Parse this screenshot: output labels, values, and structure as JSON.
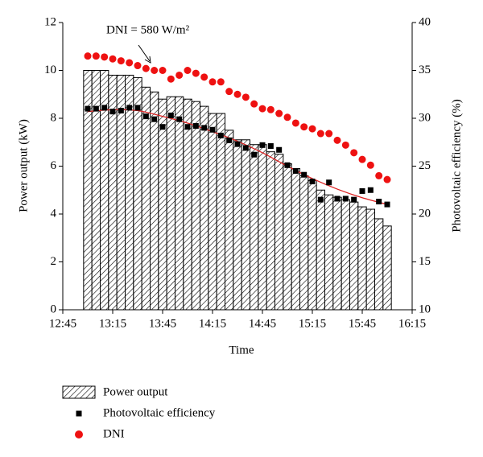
{
  "chart_data": {
    "type": "bar-scatter",
    "xlabel": "Time",
    "ylabel": "Power output (kW)",
    "y2label": "Photovoltaic efficiency (%)",
    "annotation": "DNI = 580 W/m²",
    "xlim": [
      765,
      975
    ],
    "xticks": [
      {
        "value": 765,
        "label": "12:45"
      },
      {
        "value": 795,
        "label": "13:15"
      },
      {
        "value": 825,
        "label": "13:45"
      },
      {
        "value": 855,
        "label": "14:15"
      },
      {
        "value": 885,
        "label": "14:45"
      },
      {
        "value": 915,
        "label": "15:15"
      },
      {
        "value": 945,
        "label": "15:45"
      },
      {
        "value": 975,
        "label": "16:15"
      }
    ],
    "ylim": [
      0,
      12
    ],
    "yticks": [
      0,
      2,
      4,
      6,
      8,
      10,
      12
    ],
    "y2lim": [
      10,
      40
    ],
    "y2ticks": [
      10,
      15,
      20,
      25,
      30,
      35,
      40
    ],
    "x": [
      780,
      785,
      790,
      795,
      800,
      805,
      810,
      815,
      820,
      825,
      830,
      835,
      840,
      845,
      850,
      855,
      860,
      865,
      870,
      875,
      880,
      885,
      890,
      895,
      900,
      905,
      910,
      915,
      920,
      925,
      930,
      935,
      940,
      945,
      950,
      955,
      960
    ],
    "series": [
      {
        "name": "Power output",
        "color": "#000000",
        "values": [
          10,
          10,
          10,
          9.8,
          9.8,
          9.8,
          9.7,
          9.3,
          9.1,
          8.8,
          8.9,
          8.9,
          8.8,
          8.7,
          8.5,
          8.2,
          8.2,
          7.5,
          7.1,
          7.1,
          6.9,
          6.9,
          6.6,
          6.5,
          6.1,
          5.9,
          5.6,
          5.4,
          5.0,
          4.8,
          4.7,
          4.6,
          4.5,
          4.3,
          4.2,
          3.8,
          3.5
        ]
      },
      {
        "name": "Photovoltaic efficiency",
        "color": "#000000",
        "axis": "y2",
        "values": [
          31,
          31,
          31.1,
          30.7,
          30.8,
          31.1,
          31.1,
          30.2,
          29.9,
          29.1,
          30.3,
          29.9,
          29.1,
          29.2,
          29,
          28.8,
          28.2,
          27.7,
          27.3,
          26.9,
          26.2,
          27.2,
          27.1,
          26.7,
          25.1,
          24.5,
          24.1,
          23.4,
          21.5,
          23.3,
          21.6,
          21.6,
          21.5,
          22.4,
          22.5,
          21.3,
          21.0
        ]
      },
      {
        "name": "DNI",
        "color": "#ee1111",
        "axis": "y2",
        "values": [
          36.5,
          36.5,
          36.4,
          36.2,
          36,
          35.8,
          35.5,
          35.2,
          35,
          35,
          34.1,
          34.5,
          35,
          34.7,
          34.3,
          33.8,
          33.8,
          32.8,
          32.5,
          32.2,
          31.5,
          31,
          30.9,
          30.5,
          30.1,
          29.5,
          29.1,
          28.9,
          28.4,
          28.4,
          27.7,
          27.2,
          26.4,
          25.7,
          25.1,
          24,
          23.6
        ]
      }
    ],
    "trendline": {
      "color": "#dd2222",
      "x": [
        780,
        795,
        810,
        825,
        840,
        855,
        870,
        885,
        900,
        915,
        930,
        945,
        960
      ],
      "values": [
        30.7,
        30.9,
        30.8,
        30.2,
        29.5,
        28.6,
        27.6,
        26.4,
        25.0,
        23.7,
        22.6,
        21.7,
        21.0
      ]
    }
  }
}
